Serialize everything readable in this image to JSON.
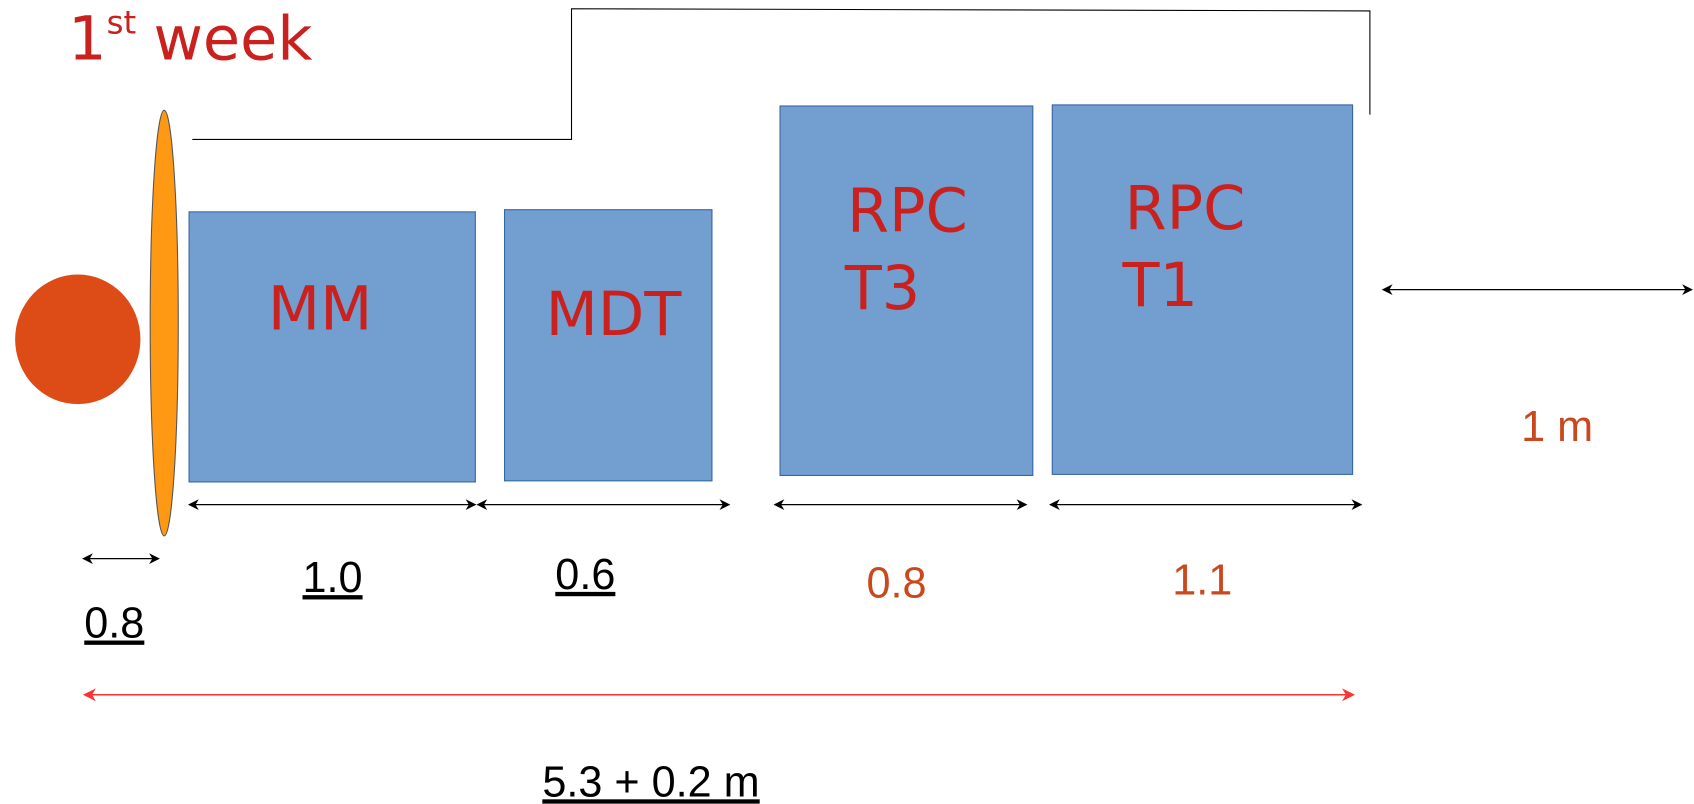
{
  "title": {
    "number": "1",
    "suffix": "st",
    "word": "week"
  },
  "boxes": [
    {
      "lines": [
        "MM"
      ]
    },
    {
      "lines": [
        "MDT"
      ]
    },
    {
      "lines": [
        "RPC",
        "T3"
      ]
    },
    {
      "lines": [
        "RPC",
        "T1"
      ]
    }
  ],
  "dimensions": {
    "layer": "0.8",
    "mm": "1.0",
    "mdt": "0.6",
    "rpc_t3": "0.8",
    "rpc_t1": "1.1",
    "gap": "1 m",
    "total": "5.3 + 0.2 m"
  }
}
